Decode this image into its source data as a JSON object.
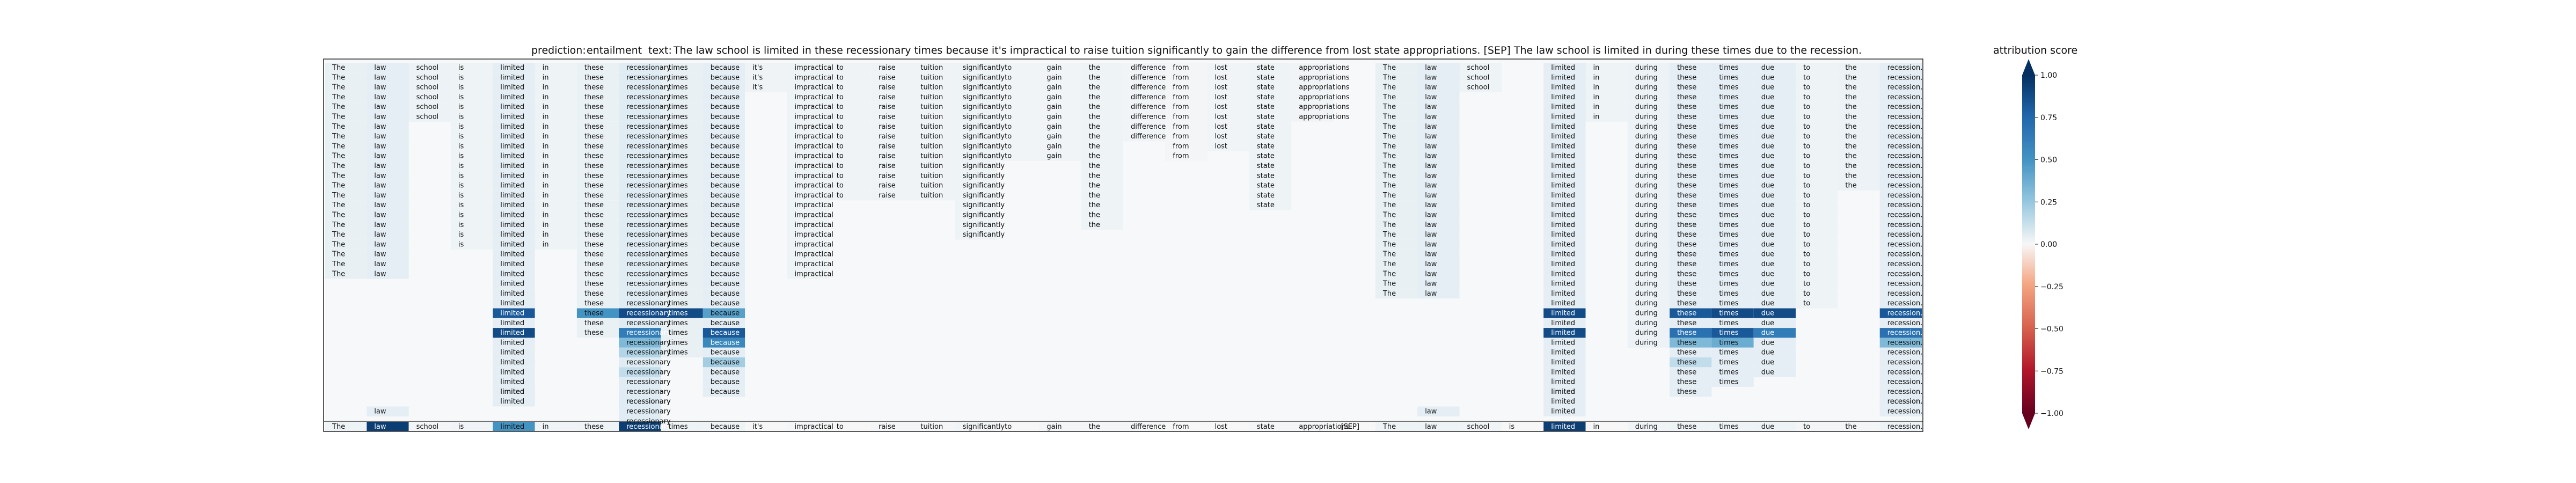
{
  "chart_data": {
    "type": "heatmap",
    "header": {
      "prediction_label": "prediction:",
      "prediction": "entailment",
      "text_label": "text:",
      "text": "The law school is limited in these recessionary times because it's impractical to raise tuition significantly to gain the difference from lost state appropriations. [SEP] The law school is limited in during these times due to the recession."
    },
    "tokens": [
      "The",
      "law",
      "school",
      "is",
      "limited",
      "in",
      "these",
      "recessionary",
      "times",
      "because",
      "it's",
      "impractical",
      "to",
      "raise",
      "tuition",
      "significantly",
      "to",
      "gain",
      "the",
      "difference",
      "from",
      "lost",
      "state",
      "appropriations",
      "[SEP]",
      "The",
      "law",
      "school",
      "is",
      "limited",
      "in",
      "during",
      "these",
      "times",
      "due",
      "to",
      "the",
      "recession."
    ],
    "bottom_row_scores": [
      0.05,
      0.95,
      0.02,
      0.03,
      0.6,
      0.03,
      0.05,
      0.95,
      0.05,
      0.05,
      0,
      0.02,
      0,
      0.02,
      0.02,
      0.03,
      0,
      0.02,
      0.02,
      0.02,
      0,
      0,
      0.02,
      0.02,
      0,
      0.05,
      0.05,
      0.03,
      0,
      0.95,
      0,
      0.03,
      0.05,
      0.05,
      0.05,
      0.02,
      0.02,
      0.05
    ],
    "column_scores": [
      0.08,
      0.1,
      0.06,
      0.05,
      0.1,
      0.05,
      0.07,
      0.12,
      0.08,
      0.1,
      0.04,
      0.05,
      0.04,
      0.04,
      0.04,
      0.05,
      0.03,
      0.03,
      0.05,
      0.03,
      0.02,
      0.03,
      0.05,
      0.03,
      0,
      0.08,
      0.1,
      0.05,
      0.03,
      0.1,
      0.05,
      0.06,
      0.1,
      0.1,
      0.1,
      0.05,
      0.06,
      0.1
    ],
    "column_extents": [
      22,
      22,
      6,
      19,
      35,
      19,
      28,
      38,
      30,
      34,
      3,
      22,
      14,
      14,
      14,
      18,
      10,
      10,
      17,
      8,
      10,
      9,
      15,
      6,
      0,
      24,
      24,
      3,
      0,
      36,
      6,
      29,
      34,
      33,
      32,
      25,
      13,
      36
    ],
    "highlights": [
      {
        "col": 4,
        "row": 25,
        "v": 0.85
      },
      {
        "col": 4,
        "row": 27,
        "v": 0.9
      },
      {
        "col": 6,
        "row": 25,
        "v": 0.6
      },
      {
        "col": 7,
        "row": 25,
        "v": 0.9
      },
      {
        "col": 7,
        "row": 27,
        "v": 0.7
      },
      {
        "col": 7,
        "row": 28,
        "v": 0.45
      },
      {
        "col": 7,
        "row": 29,
        "v": 0.3
      },
      {
        "col": 7,
        "row": 31,
        "v": 0.25
      },
      {
        "col": 8,
        "row": 25,
        "v": 0.9
      },
      {
        "col": 9,
        "row": 25,
        "v": 0.55
      },
      {
        "col": 9,
        "row": 27,
        "v": 0.85
      },
      {
        "col": 9,
        "row": 28,
        "v": 0.65
      },
      {
        "col": 9,
        "row": 30,
        "v": 0.35
      },
      {
        "col": 29,
        "row": 25,
        "v": 0.9
      },
      {
        "col": 29,
        "row": 27,
        "v": 0.9
      },
      {
        "col": 32,
        "row": 25,
        "v": 0.85
      },
      {
        "col": 32,
        "row": 27,
        "v": 0.75
      },
      {
        "col": 32,
        "row": 28,
        "v": 0.45
      },
      {
        "col": 32,
        "row": 30,
        "v": 0.25
      },
      {
        "col": 33,
        "row": 25,
        "v": 0.9
      },
      {
        "col": 33,
        "row": 27,
        "v": 0.85
      },
      {
        "col": 33,
        "row": 28,
        "v": 0.5
      },
      {
        "col": 34,
        "row": 25,
        "v": 0.9
      },
      {
        "col": 34,
        "row": 27,
        "v": 0.7
      },
      {
        "col": 37,
        "row": 25,
        "v": 0.85
      },
      {
        "col": 37,
        "row": 27,
        "v": 0.75
      },
      {
        "col": 37,
        "row": 28,
        "v": 0.45
      }
    ],
    "extra_cells": [
      {
        "col": 1,
        "row": 35
      },
      {
        "col": 4,
        "row": 33
      },
      {
        "col": 7,
        "row": 34
      },
      {
        "col": 29,
        "row": 33
      },
      {
        "col": 37,
        "row": 34
      },
      {
        "col": 26,
        "row": 35
      }
    ],
    "colorbar": {
      "label": "attribution score",
      "ticks": [
        "1.00",
        "0.75",
        "0.50",
        "0.25",
        "0.00",
        "−0.25",
        "−0.50",
        "−0.75",
        "−1.00"
      ],
      "range": [
        -1,
        1
      ]
    }
  }
}
